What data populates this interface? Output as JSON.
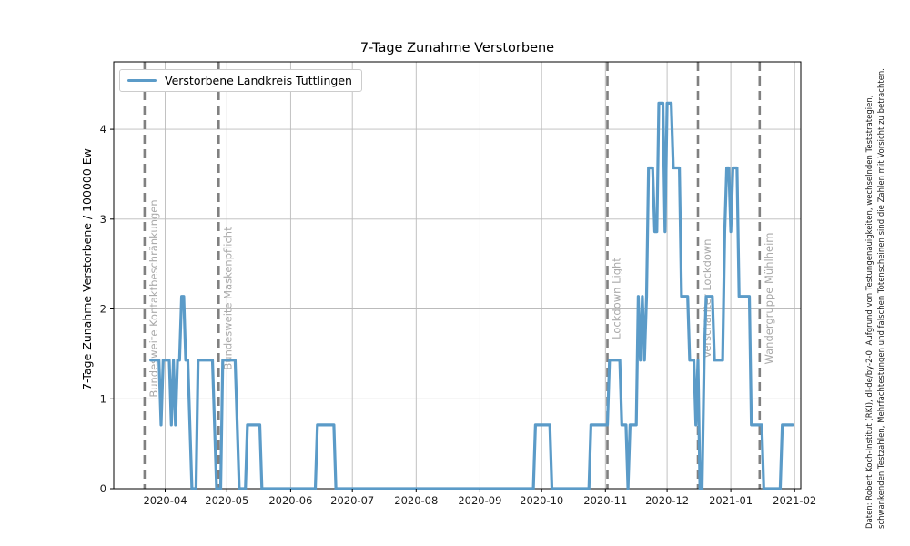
{
  "chart_data": {
    "type": "line",
    "title": "7-Tage Zunahme Verstorbene",
    "ylabel": "7-Tage Zunahme Verstorbene / 100000 Ew",
    "xlabel": "",
    "grid": true,
    "legend_position": "upper-left",
    "legend": [
      {
        "label": "Verstorbene Landkreis Tuttlingen",
        "color": "#5b9bc8"
      }
    ],
    "xlim": [
      "2020-03-07",
      "2021-02-04"
    ],
    "ylim": [
      0,
      4.75
    ],
    "yticks": [
      0,
      1,
      2,
      3,
      4
    ],
    "xticks": [
      "2020-04-01",
      "2020-05-01",
      "2020-06-01",
      "2020-07-01",
      "2020-08-01",
      "2020-09-01",
      "2020-10-01",
      "2020-11-01",
      "2020-12-01",
      "2021-01-01",
      "2021-02-01"
    ],
    "xtick_labels": [
      "2020-04",
      "2020-05",
      "2020-06",
      "2020-07",
      "2020-08",
      "2020-09",
      "2020-10",
      "2020-11",
      "2020-12",
      "2021-01",
      "2021-02"
    ],
    "series": [
      {
        "name": "Verstorbene Landkreis Tuttlingen",
        "color": "#5b9bc8",
        "line_width": 3.2,
        "points": [
          [
            "2020-03-25",
            1.43
          ],
          [
            "2020-03-29",
            1.43
          ],
          [
            "2020-03-30",
            0.71
          ],
          [
            "2020-03-31",
            1.43
          ],
          [
            "2020-04-03",
            1.43
          ],
          [
            "2020-04-04",
            0.71
          ],
          [
            "2020-04-05",
            1.43
          ],
          [
            "2020-04-06",
            0.71
          ],
          [
            "2020-04-07",
            1.43
          ],
          [
            "2020-04-08",
            1.43
          ],
          [
            "2020-04-09",
            2.14
          ],
          [
            "2020-04-10",
            2.14
          ],
          [
            "2020-04-11",
            1.43
          ],
          [
            "2020-04-12",
            1.43
          ],
          [
            "2020-04-14",
            0
          ],
          [
            "2020-04-16",
            0
          ],
          [
            "2020-04-17",
            1.43
          ],
          [
            "2020-04-24",
            1.43
          ],
          [
            "2020-04-26",
            0
          ],
          [
            "2020-04-28",
            0
          ],
          [
            "2020-04-29",
            1.43
          ],
          [
            "2020-05-05",
            1.43
          ],
          [
            "2020-05-07",
            0
          ],
          [
            "2020-05-10",
            0
          ],
          [
            "2020-05-11",
            0.71
          ],
          [
            "2020-05-17",
            0.71
          ],
          [
            "2020-05-18",
            0
          ],
          [
            "2020-06-13",
            0
          ],
          [
            "2020-06-14",
            0.71
          ],
          [
            "2020-06-22",
            0.71
          ],
          [
            "2020-06-23",
            0
          ],
          [
            "2020-09-27",
            0
          ],
          [
            "2020-09-28",
            0.71
          ],
          [
            "2020-10-05",
            0.71
          ],
          [
            "2020-10-06",
            0
          ],
          [
            "2020-10-24",
            0
          ],
          [
            "2020-10-25",
            0.71
          ],
          [
            "2020-11-02",
            0.71
          ],
          [
            "2020-11-03",
            1.43
          ],
          [
            "2020-11-08",
            1.43
          ],
          [
            "2020-11-09",
            0.71
          ],
          [
            "2020-11-11",
            0.71
          ],
          [
            "2020-11-12",
            0
          ],
          [
            "2020-11-13",
            0.71
          ],
          [
            "2020-11-16",
            0.71
          ],
          [
            "2020-11-17",
            2.14
          ],
          [
            "2020-11-18",
            1.43
          ],
          [
            "2020-11-19",
            2.14
          ],
          [
            "2020-11-20",
            1.43
          ],
          [
            "2020-11-21",
            2.14
          ],
          [
            "2020-11-22",
            3.57
          ],
          [
            "2020-11-24",
            3.57
          ],
          [
            "2020-11-25",
            2.86
          ],
          [
            "2020-11-26",
            2.86
          ],
          [
            "2020-11-27",
            4.29
          ],
          [
            "2020-11-29",
            4.29
          ],
          [
            "2020-11-30",
            2.86
          ],
          [
            "2020-12-01",
            4.29
          ],
          [
            "2020-12-03",
            4.29
          ],
          [
            "2020-12-04",
            3.57
          ],
          [
            "2020-12-07",
            3.57
          ],
          [
            "2020-12-08",
            2.14
          ],
          [
            "2020-12-11",
            2.14
          ],
          [
            "2020-12-12",
            1.43
          ],
          [
            "2020-12-14",
            1.43
          ],
          [
            "2020-12-15",
            0.71
          ],
          [
            "2020-12-16",
            1.43
          ],
          [
            "2020-12-17",
            0
          ],
          [
            "2020-12-18",
            0
          ],
          [
            "2020-12-19",
            1.43
          ],
          [
            "2020-12-20",
            2.14
          ],
          [
            "2020-12-23",
            2.14
          ],
          [
            "2020-12-24",
            1.43
          ],
          [
            "2020-12-28",
            1.43
          ],
          [
            "2020-12-29",
            2.86
          ],
          [
            "2020-12-30",
            3.57
          ],
          [
            "2020-12-31",
            3.57
          ],
          [
            "2021-01-01",
            2.86
          ],
          [
            "2021-01-02",
            3.57
          ],
          [
            "2021-01-04",
            3.57
          ],
          [
            "2021-01-05",
            2.14
          ],
          [
            "2021-01-10",
            2.14
          ],
          [
            "2021-01-11",
            0.71
          ],
          [
            "2021-01-16",
            0.71
          ],
          [
            "2021-01-17",
            0
          ],
          [
            "2021-01-25",
            0
          ],
          [
            "2021-01-26",
            0.71
          ],
          [
            "2021-01-31",
            0.71
          ]
        ]
      }
    ],
    "event_lines": [
      {
        "date": "2020-03-22",
        "label": "Bundesweite Kontaktbeschränkungen"
      },
      {
        "date": "2020-04-27",
        "label": "Bundesweite Maskenpflicht"
      },
      {
        "date": "2020-11-02",
        "label": "Lockdown Light"
      },
      {
        "date": "2020-12-16",
        "label": "Verschärfter Lockdown"
      },
      {
        "date": "2021-01-15",
        "label": "Wandergruppe Mühlheim"
      }
    ],
    "colors": {
      "line": "#5b9bc8",
      "grid": "#bbbbbb",
      "event_line": "#808080",
      "event_label": "#aaaaaa",
      "axis": "#000000",
      "tick_label": "#1a1a1a",
      "background": "#ffffff"
    }
  },
  "caption": {
    "line1": "Daten: Robert Koch-Institut (RKI), dl-de/by-2-0: Aufgrund von Testungenauigkeiten, wechselnden Teststrategien,",
    "line2": "schwankenden Testzahlen, Mehrfachtestungen und falschen Totenscheinen sind die Zahlen mit Vorsicht zu betrachten."
  }
}
